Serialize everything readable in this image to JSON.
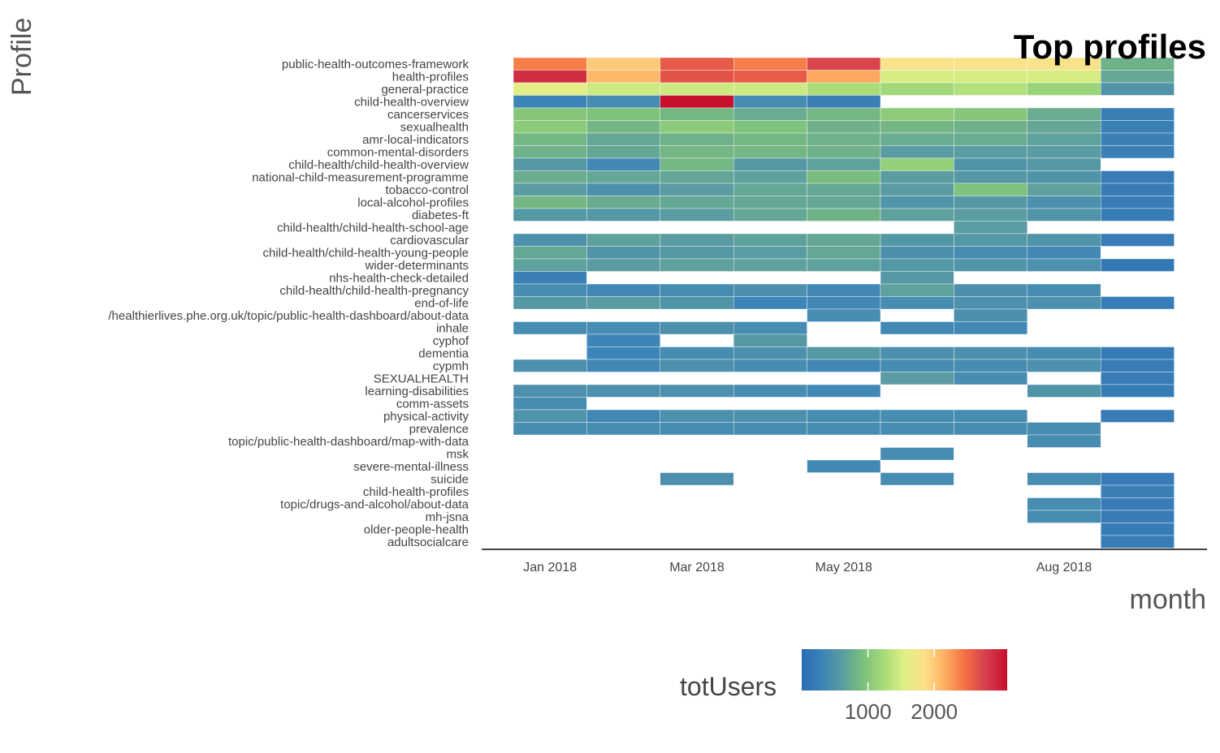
{
  "chart_data": {
    "type": "heatmap",
    "title": "Top profiles",
    "xlabel": "month",
    "ylabel": "Profile",
    "x": [
      "2018-01",
      "2018-02",
      "2018-03",
      "2018-04",
      "2018-05",
      "2018-06",
      "2018-07",
      "2018-08",
      "2018-09"
    ],
    "x_tick_labels": [
      {
        "month": "2018-01",
        "label": "Jan 2018"
      },
      {
        "month": "2018-03",
        "label": "Mar 2018"
      },
      {
        "month": "2018-05",
        "label": "May 2018"
      },
      {
        "month": "2018-08",
        "label": "Aug 2018"
      }
    ],
    "legend": {
      "title": "totUsers",
      "ticks": [
        1000,
        2000
      ],
      "range": [
        0,
        3100
      ],
      "position": "bottom"
    },
    "grid": false,
    "rows": [
      {
        "profile": "public-health-outcomes-framework",
        "values": [
          2400,
          2000,
          2600,
          2400,
          2750,
          1800,
          1800,
          1800,
          800
        ]
      },
      {
        "profile": "health-profiles",
        "values": [
          2900,
          2100,
          2650,
          2600,
          2200,
          1500,
          1500,
          1500,
          700
        ]
      },
      {
        "profile": "general-practice",
        "values": [
          1600,
          1450,
          1450,
          1450,
          1250,
          1200,
          1300,
          1150,
          500
        ]
      },
      {
        "profile": "child-health-overview",
        "values": [
          300,
          400,
          3100,
          400,
          250,
          null,
          null,
          null,
          null
        ]
      },
      {
        "profile": "cancerservices",
        "values": [
          1000,
          950,
          850,
          750,
          850,
          1050,
          1000,
          750,
          250
        ]
      },
      {
        "profile": "sexualhealth",
        "values": [
          1050,
          850,
          1050,
          950,
          800,
          850,
          800,
          700,
          250
        ]
      },
      {
        "profile": "amr-local-indicators",
        "values": [
          850,
          700,
          800,
          850,
          800,
          750,
          750,
          650,
          250
        ]
      },
      {
        "profile": "common-mental-disorders",
        "values": [
          800,
          700,
          850,
          850,
          800,
          600,
          600,
          600,
          250
        ]
      },
      {
        "profile": "child-health/child-health-overview",
        "values": [
          550,
          350,
          850,
          550,
          650,
          1100,
          500,
          550,
          null
        ]
      },
      {
        "profile": "national-child-measurement-programme",
        "values": [
          750,
          700,
          700,
          650,
          900,
          600,
          550,
          500,
          200
        ]
      },
      {
        "profile": "tobacco-control",
        "values": [
          600,
          450,
          600,
          700,
          700,
          600,
          950,
          650,
          200
        ]
      },
      {
        "profile": "local-alcohol-profiles",
        "values": [
          850,
          750,
          700,
          700,
          700,
          500,
          550,
          450,
          200
        ]
      },
      {
        "profile": "diabetes-ft",
        "values": [
          550,
          550,
          600,
          700,
          800,
          650,
          600,
          500,
          200
        ]
      },
      {
        "profile": "child-health/child-health-school-age",
        "values": [
          null,
          null,
          null,
          null,
          null,
          null,
          600,
          null,
          null
        ]
      },
      {
        "profile": "cardiovascular",
        "values": [
          450,
          650,
          600,
          650,
          700,
          550,
          550,
          500,
          200
        ]
      },
      {
        "profile": "child-health/child-health-young-people",
        "values": [
          700,
          500,
          550,
          600,
          700,
          450,
          400,
          350,
          null
        ]
      },
      {
        "profile": "wider-determinants",
        "values": [
          650,
          600,
          650,
          650,
          650,
          550,
          500,
          450,
          150
        ]
      },
      {
        "profile": "nhs-health-check-detailed",
        "values": [
          250,
          null,
          null,
          null,
          null,
          550,
          null,
          null,
          null
        ]
      },
      {
        "profile": "child-health/child-health-pregnancy",
        "values": [
          400,
          350,
          400,
          450,
          350,
          650,
          450,
          400,
          null
        ]
      },
      {
        "profile": "end-of-life",
        "values": [
          550,
          600,
          500,
          300,
          350,
          400,
          450,
          450,
          200
        ]
      },
      {
        "profile": "/healthierlives.phe.org.uk/topic/public-health-dashboard/about-data",
        "values": [
          null,
          null,
          null,
          null,
          400,
          null,
          450,
          null,
          null
        ]
      },
      {
        "profile": "inhale",
        "values": [
          400,
          400,
          450,
          400,
          null,
          350,
          350,
          null,
          null
        ]
      },
      {
        "profile": "cyphof",
        "values": [
          null,
          300,
          null,
          550,
          null,
          null,
          null,
          null,
          null
        ]
      },
      {
        "profile": "dementia",
        "values": [
          null,
          300,
          400,
          450,
          550,
          450,
          450,
          400,
          200
        ]
      },
      {
        "profile": "cypmh",
        "values": [
          450,
          350,
          450,
          400,
          350,
          400,
          400,
          450,
          200
        ]
      },
      {
        "profile": "SEXUALHEALTH",
        "values": [
          null,
          null,
          null,
          null,
          null,
          600,
          400,
          null,
          200
        ]
      },
      {
        "profile": "learning-disabilities",
        "values": [
          450,
          450,
          450,
          400,
          350,
          null,
          null,
          500,
          200
        ]
      },
      {
        "profile": "comm-assets",
        "values": [
          400,
          null,
          null,
          null,
          null,
          null,
          null,
          null,
          null
        ]
      },
      {
        "profile": "physical-activity",
        "values": [
          500,
          350,
          450,
          450,
          400,
          400,
          400,
          null,
          200
        ]
      },
      {
        "profile": "prevalence",
        "values": [
          400,
          400,
          400,
          400,
          400,
          400,
          400,
          400,
          null
        ]
      },
      {
        "profile": "topic/public-health-dashboard/map-with-data",
        "values": [
          null,
          null,
          null,
          null,
          null,
          null,
          null,
          400,
          null
        ]
      },
      {
        "profile": "msk",
        "values": [
          null,
          null,
          null,
          null,
          null,
          400,
          null,
          null,
          null
        ]
      },
      {
        "profile": "severe-mental-illness",
        "values": [
          null,
          null,
          null,
          null,
          350,
          null,
          null,
          null,
          null
        ]
      },
      {
        "profile": "suicide",
        "values": [
          null,
          null,
          450,
          null,
          null,
          400,
          null,
          400,
          200
        ]
      },
      {
        "profile": "child-health-profiles",
        "values": [
          null,
          null,
          null,
          null,
          null,
          null,
          null,
          null,
          250
        ]
      },
      {
        "profile": "topic/drugs-and-alcohol/about-data",
        "values": [
          null,
          null,
          null,
          null,
          null,
          null,
          null,
          400,
          200
        ]
      },
      {
        "profile": "mh-jsna",
        "values": [
          null,
          null,
          null,
          null,
          null,
          null,
          null,
          400,
          200
        ]
      },
      {
        "profile": "older-people-health",
        "values": [
          null,
          null,
          null,
          null,
          null,
          null,
          null,
          null,
          200
        ]
      },
      {
        "profile": "adultsocialcare",
        "values": [
          null,
          null,
          null,
          null,
          null,
          null,
          null,
          null,
          200
        ]
      }
    ]
  }
}
